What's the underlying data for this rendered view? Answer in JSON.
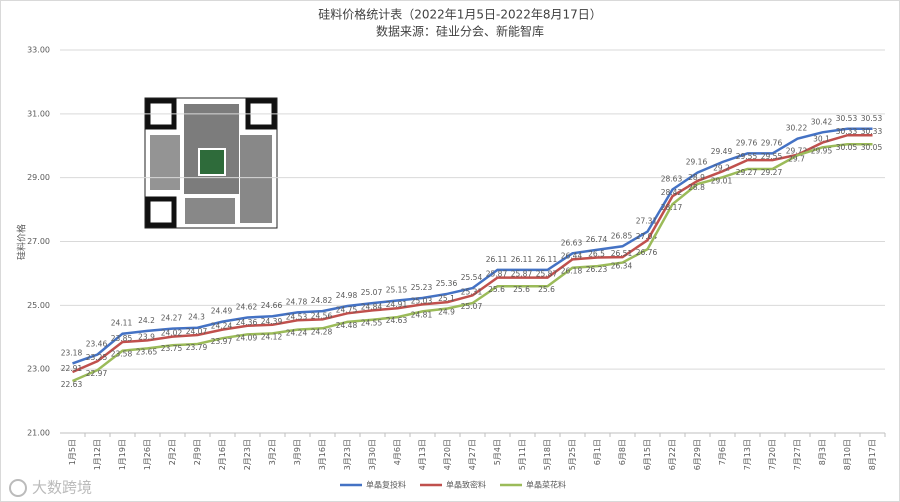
{
  "chart_data": {
    "type": "line",
    "title": "硅料价格统计表（2022年1月5日-2022年8月17日）",
    "subtitle": "数据来源：硅业分会、新能智库",
    "y_label": "硅料价格",
    "watermark": "大数跨境",
    "categories": [
      "1月5日",
      "1月12日",
      "1月19日",
      "1月26日",
      "2月2日",
      "2月9日",
      "2月16日",
      "2月23日",
      "3月2日",
      "3月9日",
      "3月16日",
      "3月23日",
      "3月30日",
      "4月6日",
      "4月13日",
      "4月20日",
      "4月27日",
      "5月4日",
      "5月11日",
      "5月18日",
      "5月25日",
      "6月1日",
      "6月8日",
      "6月15日",
      "6月22日",
      "6月29日",
      "7月6日",
      "7月13日",
      "7月20日",
      "7月27日",
      "8月3日",
      "8月10日",
      "8月17日"
    ],
    "series": [
      {
        "name": "单晶复投料",
        "color": "#4472c4",
        "values": [
          23.18,
          23.46,
          24.11,
          24.2,
          24.27,
          24.3,
          24.49,
          24.62,
          24.66,
          24.78,
          24.82,
          24.98,
          25.07,
          25.15,
          25.23,
          25.36,
          25.54,
          26.11,
          26.11,
          26.11,
          26.63,
          26.74,
          26.85,
          27.31,
          28.63,
          29.16,
          29.49,
          29.76,
          29.76,
          30.22,
          30.42,
          30.53,
          30.53
        ]
      },
      {
        "name": "单晶致密料",
        "color": "#c0504d",
        "values": [
          22.91,
          23.25,
          23.85,
          23.9,
          24.02,
          24.07,
          24.24,
          24.36,
          24.39,
          24.53,
          24.56,
          24.75,
          24.84,
          24.91,
          25.03,
          25.1,
          25.31,
          25.87,
          25.87,
          25.87,
          26.44,
          26.5,
          26.51,
          27.04,
          28.42,
          28.9,
          29.2,
          29.55,
          29.55,
          29.72,
          30.1,
          30.33,
          30.33
        ]
      },
      {
        "name": "单晶菜花料",
        "color": "#9bbb59",
        "values": [
          22.63,
          22.97,
          23.58,
          23.65,
          23.75,
          23.79,
          23.97,
          24.09,
          24.12,
          24.24,
          24.28,
          24.48,
          24.55,
          24.63,
          24.81,
          24.9,
          25.07,
          25.6,
          25.6,
          25.6,
          26.18,
          26.23,
          26.34,
          26.76,
          28.17,
          28.8,
          29.01,
          29.27,
          29.27,
          29.7,
          29.95,
          30.05,
          30.05
        ]
      }
    ],
    "ylim": [
      21,
      33
    ],
    "yticks": [
      {
        "value": 21,
        "label": "21.00"
      },
      {
        "value": 23,
        "label": "23.00"
      },
      {
        "value": 25,
        "label": "25.00"
      },
      {
        "value": 27,
        "label": "27.00"
      },
      {
        "value": 29,
        "label": "29.00"
      },
      {
        "value": 31,
        "label": "31.00"
      },
      {
        "value": 33,
        "label": "33.00"
      }
    ],
    "grid": true,
    "legend": "bottom"
  }
}
